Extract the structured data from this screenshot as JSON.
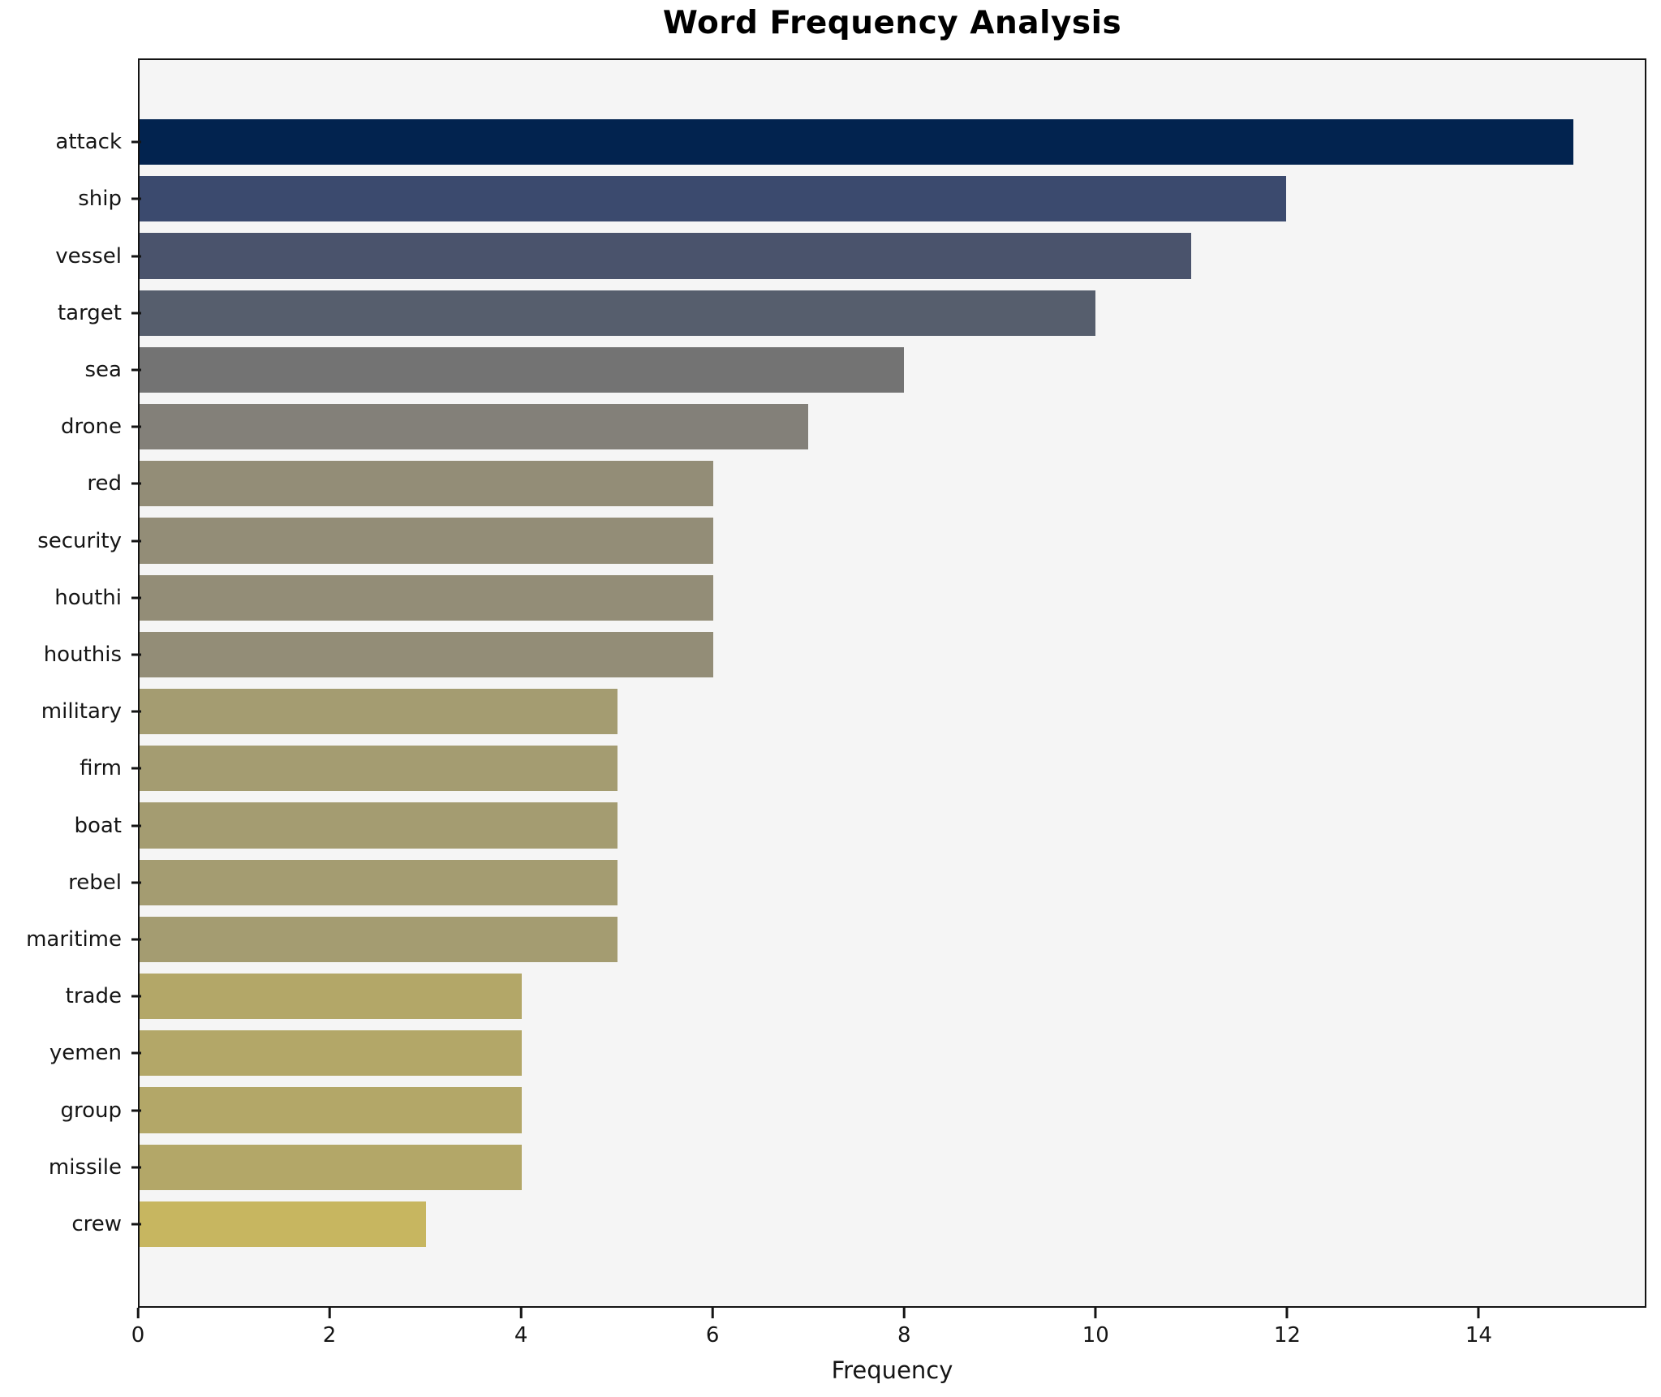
{
  "chart_data": {
    "type": "bar",
    "orientation": "horizontal",
    "title": "Word Frequency Analysis",
    "xlabel": "Frequency",
    "ylabel": "",
    "grid": false,
    "legend": "none",
    "plot_background": "#f5f5f5",
    "spine_color": "#141414",
    "xlim": [
      0,
      15.75
    ],
    "xticks": [
      0,
      2,
      4,
      6,
      8,
      10,
      12,
      14
    ],
    "categories": [
      "attack",
      "ship",
      "vessel",
      "target",
      "sea",
      "drone",
      "red",
      "security",
      "houthi",
      "houthis",
      "military",
      "firm",
      "boat",
      "rebel",
      "maritime",
      "trade",
      "yemen",
      "group",
      "missile",
      "crew"
    ],
    "values": [
      15,
      12,
      11,
      10,
      8,
      7,
      6,
      6,
      6,
      6,
      5,
      5,
      5,
      5,
      5,
      4,
      4,
      4,
      4,
      3
    ],
    "bar_colors": [
      "#02234f",
      "#3b4a6e",
      "#4a536c",
      "#565e6d",
      "#737373",
      "#838079",
      "#938d77",
      "#938d77",
      "#938d77",
      "#938d77",
      "#a49c71",
      "#a49c71",
      "#a49c71",
      "#a49c71",
      "#a49c71",
      "#b3a768",
      "#b3a768",
      "#b3a768",
      "#b3a768",
      "#c7b660"
    ]
  }
}
